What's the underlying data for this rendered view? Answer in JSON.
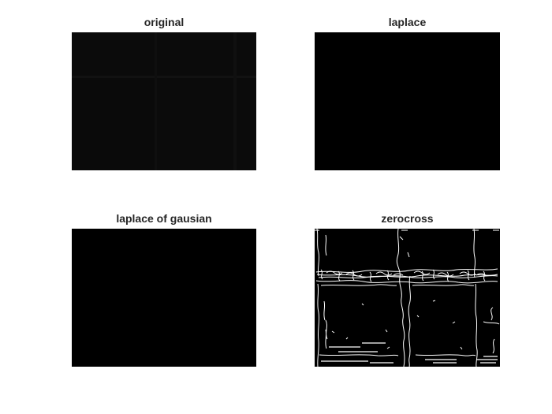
{
  "figure": {
    "background": "#ffffff",
    "panel_color": "#000000",
    "edge_color": "#ffffff"
  },
  "subplots": [
    {
      "title": "original"
    },
    {
      "title": "laplace"
    },
    {
      "title": "laplace of gausian"
    },
    {
      "title": "zerocross"
    }
  ]
}
